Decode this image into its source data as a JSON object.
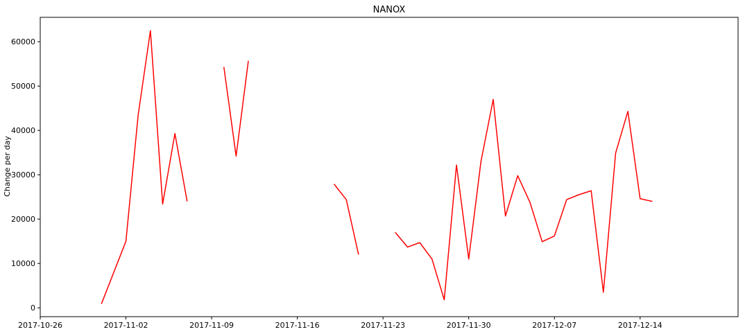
{
  "colors": {
    "line": "#ff0000",
    "axis": "#000000",
    "background": "#ffffff"
  },
  "chart_data": {
    "type": "line",
    "title": "NANOX",
    "xlabel": "",
    "ylabel": "Change per day",
    "grid": false,
    "legend": "none",
    "x_range": [
      "2017-10-26",
      "2017-12-22"
    ],
    "ylim": [
      -2000,
      65500
    ],
    "x_tick_labels": [
      "2017-10-26",
      "2017-11-02",
      "2017-11-09",
      "2017-11-16",
      "2017-11-23",
      "2017-11-30",
      "2017-12-07",
      "2017-12-14"
    ],
    "y_tick_labels": [
      "0",
      "10000",
      "20000",
      "30000",
      "40000",
      "50000",
      "60000"
    ],
    "series": [
      {
        "color": "#ff0000",
        "segments": [
          [
            {
              "x": "2017-10-31",
              "y": 900
            },
            {
              "x": "2017-11-02",
              "y": 15000
            },
            {
              "x": "2017-11-03",
              "y": 43500
            },
            {
              "x": "2017-11-04",
              "y": 62500
            },
            {
              "x": "2017-11-05",
              "y": 23400
            },
            {
              "x": "2017-11-06",
              "y": 39300
            },
            {
              "x": "2017-11-07",
              "y": 24000
            }
          ],
          [
            {
              "x": "2017-11-10",
              "y": 54300
            },
            {
              "x": "2017-11-11",
              "y": 34200
            },
            {
              "x": "2017-11-12",
              "y": 55700
            }
          ],
          [
            {
              "x": "2017-11-19",
              "y": 27900
            },
            {
              "x": "2017-11-20",
              "y": 24400
            },
            {
              "x": "2017-11-21",
              "y": 12000
            }
          ],
          [
            {
              "x": "2017-11-24",
              "y": 17000
            },
            {
              "x": "2017-11-25",
              "y": 13700
            },
            {
              "x": "2017-11-26",
              "y": 14700
            },
            {
              "x": "2017-11-27",
              "y": 11000
            },
            {
              "x": "2017-11-28",
              "y": 1800
            },
            {
              "x": "2017-11-29",
              "y": 32200
            },
            {
              "x": "2017-11-30",
              "y": 11000
            },
            {
              "x": "2017-12-01",
              "y": 33000
            },
            {
              "x": "2017-12-02",
              "y": 47000
            },
            {
              "x": "2017-12-03",
              "y": 20700
            },
            {
              "x": "2017-12-04",
              "y": 29800
            },
            {
              "x": "2017-12-05",
              "y": 23800
            },
            {
              "x": "2017-12-06",
              "y": 14900
            },
            {
              "x": "2017-12-07",
              "y": 16200
            },
            {
              "x": "2017-12-08",
              "y": 24400
            },
            {
              "x": "2017-12-09",
              "y": 25500
            },
            {
              "x": "2017-12-10",
              "y": 26400
            },
            {
              "x": "2017-12-11",
              "y": 3500
            },
            {
              "x": "2017-12-12",
              "y": 34900
            },
            {
              "x": "2017-12-13",
              "y": 44300
            },
            {
              "x": "2017-12-14",
              "y": 24600
            },
            {
              "x": "2017-12-15",
              "y": 24000
            }
          ]
        ]
      }
    ]
  }
}
